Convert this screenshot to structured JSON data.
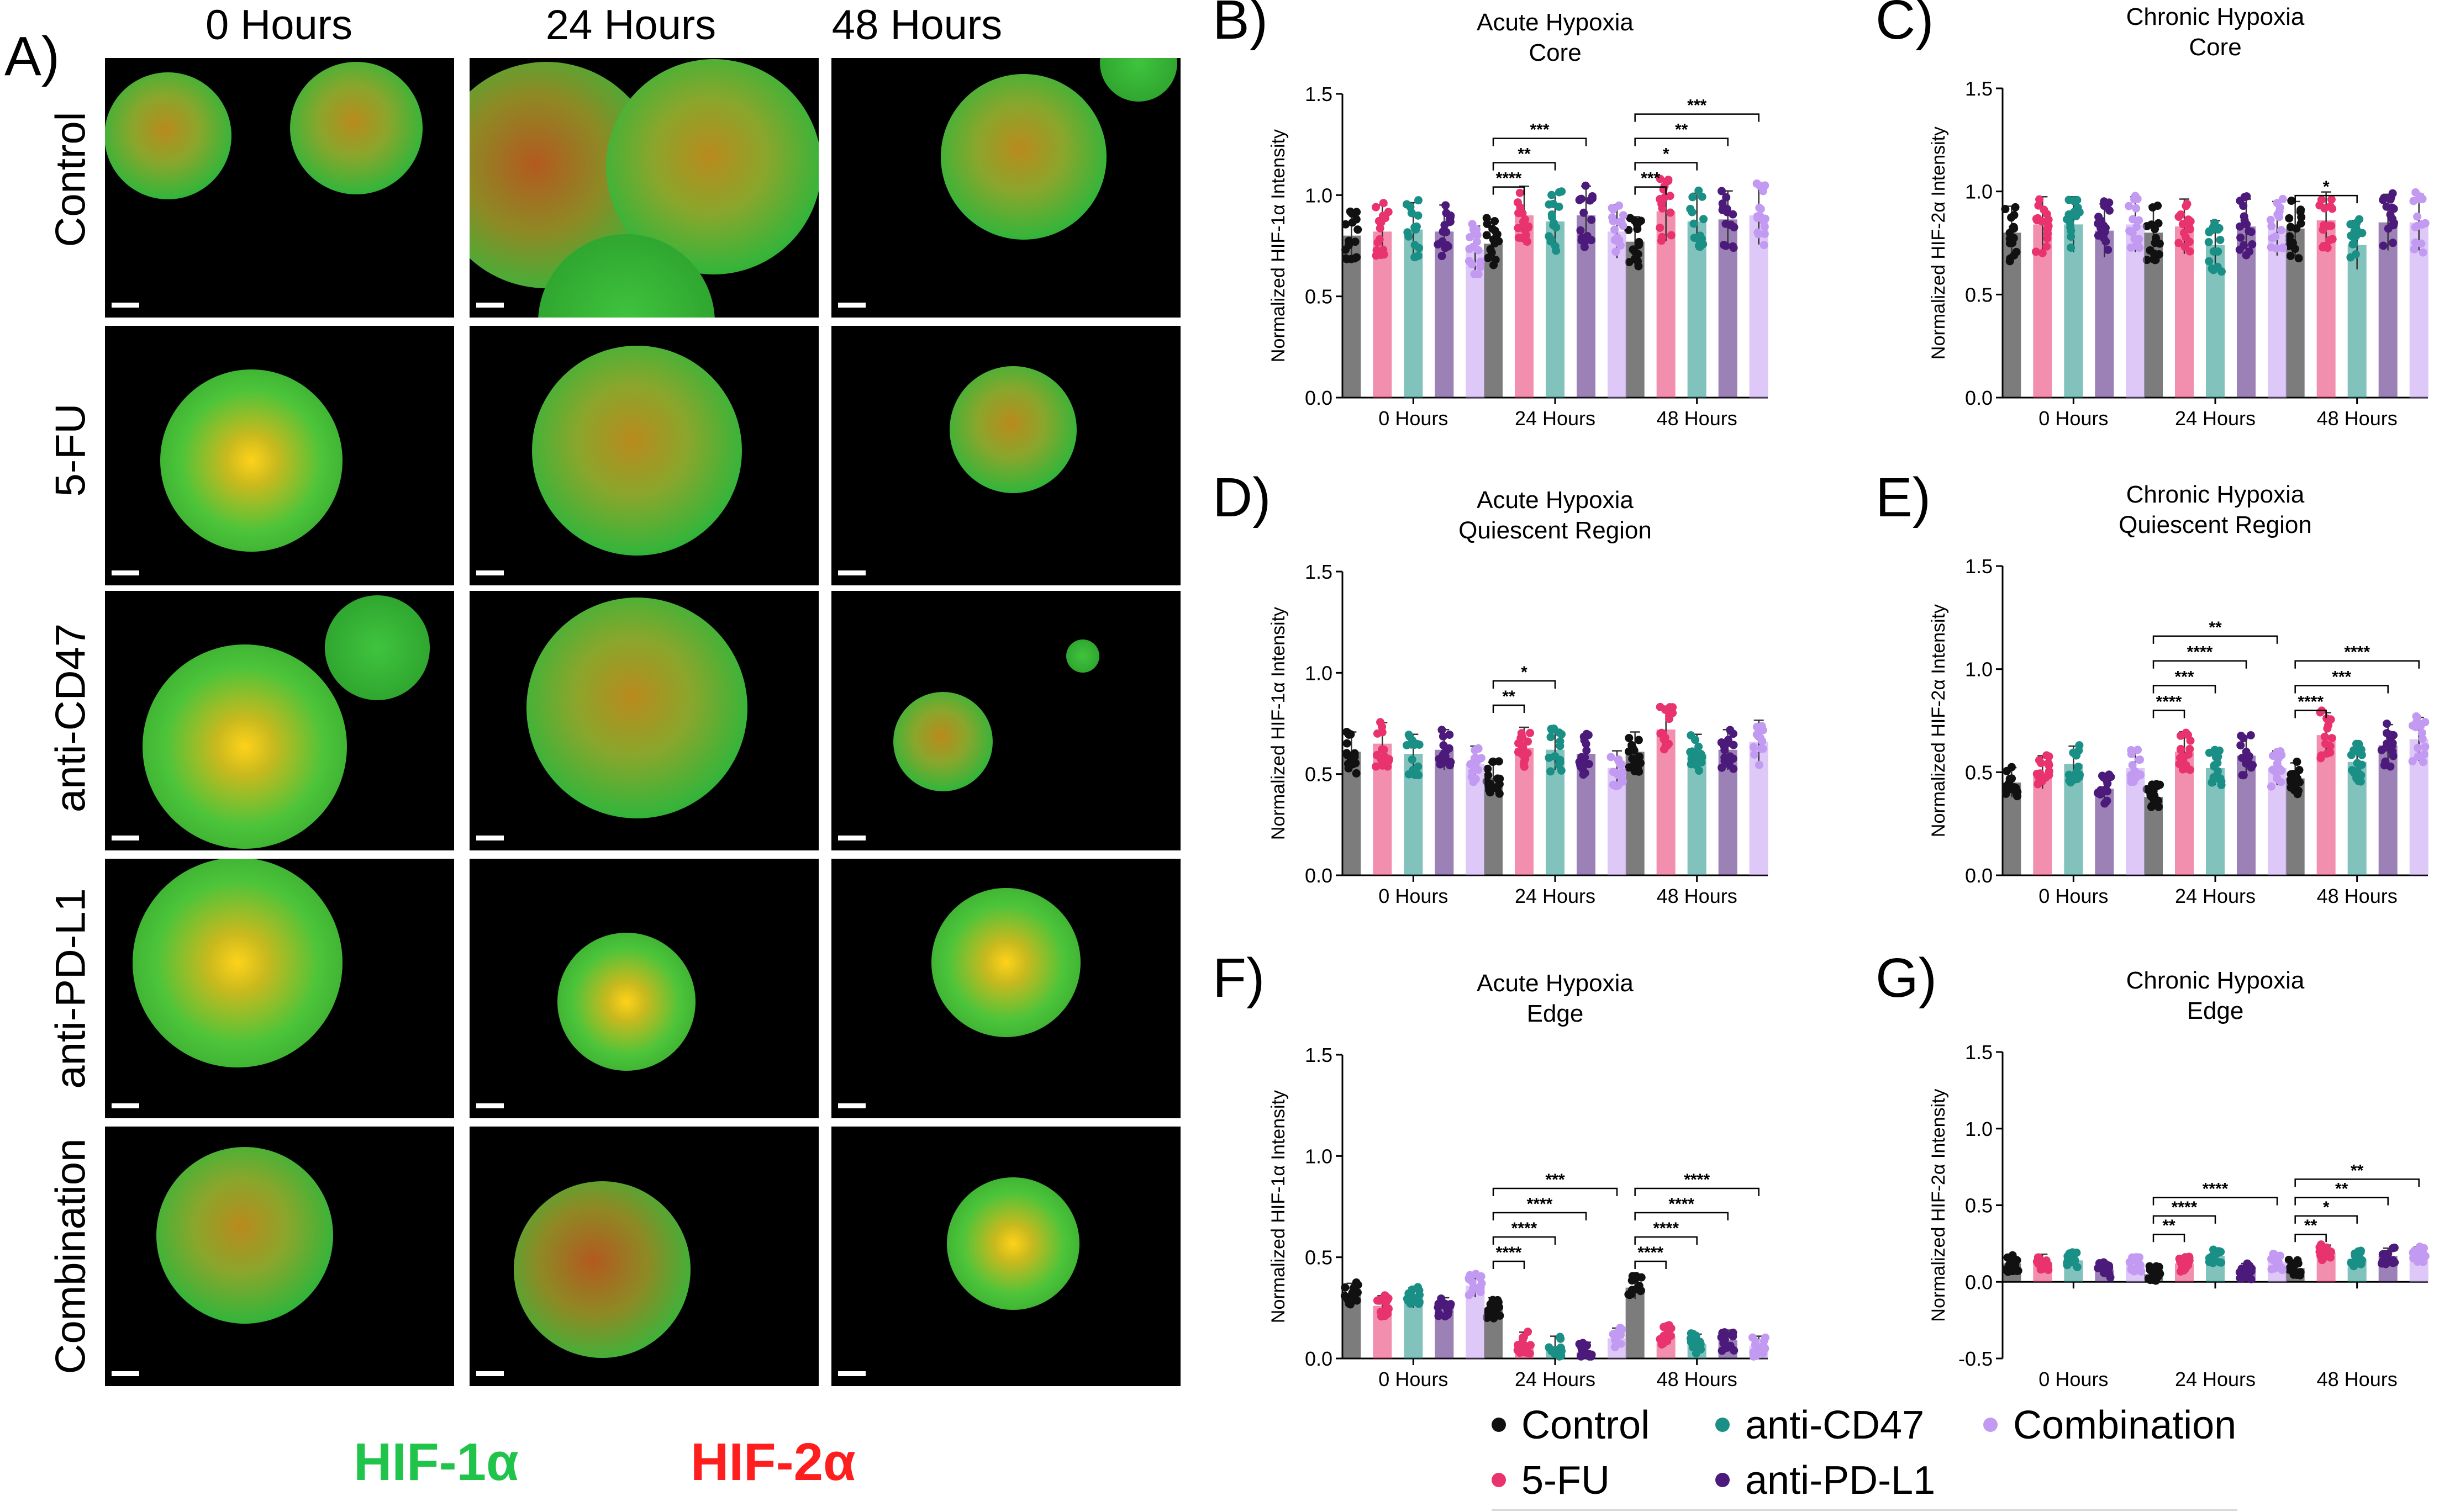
{
  "figure": {
    "panel_a_label": "A)",
    "time_headers": [
      "0 Hours",
      "24 Hours",
      "48 Hours"
    ],
    "row_labels": [
      "Control",
      "5-FU",
      "anti-CD47",
      "anti-PD-L1",
      "Combination"
    ],
    "channel_labels": [
      {
        "text": "HIF-1α",
        "color": "#21c44a"
      },
      {
        "text": "HIF-2α",
        "color": "#ff1e1e"
      }
    ]
  },
  "legend": [
    {
      "label": "Control",
      "color": "#111111"
    },
    {
      "label": "anti-CD47",
      "color": "#1a8f86"
    },
    {
      "label": "Combination",
      "color": "#c39af2"
    },
    {
      "label": "5-FU",
      "color": "#e8336e"
    },
    {
      "label": "anti-PD-L1",
      "color": "#4b1a7a"
    }
  ],
  "colors": {
    "Control": "#111111",
    "5-FU": "#e8336e",
    "anti-CD47": "#1a8f86",
    "anti-PD-L1": "#4b1a7a",
    "Combination": "#c39af2"
  },
  "chart_data": [
    {
      "panel": "B)",
      "type": "bar",
      "title": "Acute Hypoxia",
      "subtitle": "Core",
      "xlabel": "",
      "ylabel": "Normalized HIF-1α Intensity",
      "ylim": [
        0,
        1.5
      ],
      "yticks": [
        "0.0",
        "0.5",
        "1.0",
        "1.5"
      ],
      "categories": [
        "0 Hours",
        "24 Hours",
        "48 Hours"
      ],
      "series": [
        {
          "name": "Control",
          "values": [
            0.8,
            0.76,
            0.77
          ]
        },
        {
          "name": "5-FU",
          "values": [
            0.82,
            0.9,
            0.92
          ]
        },
        {
          "name": "anti-CD47",
          "values": [
            0.83,
            0.87,
            0.87
          ]
        },
        {
          "name": "anti-PD-L1",
          "values": [
            0.82,
            0.9,
            0.88
          ]
        },
        {
          "name": "Combination",
          "values": [
            0.73,
            0.82,
            0.9
          ]
        }
      ],
      "significance": [
        {
          "group": 1,
          "to": 1,
          "label": "****"
        },
        {
          "group": 1,
          "to": 2,
          "label": "**"
        },
        {
          "group": 1,
          "to": 3,
          "label": "***"
        },
        {
          "group": 2,
          "to": 1,
          "label": "***"
        },
        {
          "group": 2,
          "to": 2,
          "label": "*"
        },
        {
          "group": 2,
          "to": 3,
          "label": "**"
        },
        {
          "group": 2,
          "to": 4,
          "label": "***"
        }
      ]
    },
    {
      "panel": "C)",
      "type": "bar",
      "title": "Chronic Hypoxia",
      "subtitle": "Core",
      "xlabel": "",
      "ylabel": "Normalized HIF-2α Intensity",
      "ylim": [
        0,
        1.5
      ],
      "yticks": [
        "0.0",
        "0.5",
        "1.0",
        "1.5"
      ],
      "categories": [
        "0 Hours",
        "24 Hours",
        "48 Hours"
      ],
      "series": [
        {
          "name": "Control",
          "values": [
            0.8,
            0.8,
            0.82
          ]
        },
        {
          "name": "5-FU",
          "values": [
            0.84,
            0.83,
            0.86
          ]
        },
        {
          "name": "anti-CD47",
          "values": [
            0.84,
            0.74,
            0.74
          ]
        },
        {
          "name": "anti-PD-L1",
          "values": [
            0.81,
            0.83,
            0.85
          ]
        },
        {
          "name": "Combination",
          "values": [
            0.84,
            0.82,
            0.85
          ]
        }
      ],
      "significance": [
        {
          "group": 2,
          "to": 2,
          "label": "*"
        }
      ]
    },
    {
      "panel": "D)",
      "type": "bar",
      "title": "Acute Hypoxia",
      "subtitle": "Quiescent Region",
      "xlabel": "",
      "ylabel": "Normalized HIF-1α Intensity",
      "ylim": [
        0,
        1.5
      ],
      "yticks": [
        "0.0",
        "0.5",
        "1.0",
        "1.5"
      ],
      "categories": [
        "0 Hours",
        "24 Hours",
        "48 Hours"
      ],
      "series": [
        {
          "name": "Control",
          "values": [
            0.61,
            0.48,
            0.61
          ]
        },
        {
          "name": "5-FU",
          "values": [
            0.65,
            0.63,
            0.72
          ]
        },
        {
          "name": "anti-CD47",
          "values": [
            0.6,
            0.62,
            0.6
          ]
        },
        {
          "name": "anti-PD-L1",
          "values": [
            0.62,
            0.6,
            0.62
          ]
        },
        {
          "name": "Combination",
          "values": [
            0.55,
            0.53,
            0.66
          ]
        }
      ],
      "significance": [
        {
          "group": 1,
          "to": 1,
          "label": "**"
        },
        {
          "group": 1,
          "to": 2,
          "label": "*"
        }
      ]
    },
    {
      "panel": "E)",
      "type": "bar",
      "title": "Chronic Hypoxia",
      "subtitle": "Quiescent Region",
      "xlabel": "",
      "ylabel": "Normalized HIF-2α Intensity",
      "ylim": [
        0,
        1.5
      ],
      "yticks": [
        "0.0",
        "0.5",
        "1.0",
        "1.5"
      ],
      "categories": [
        "0 Hours",
        "24 Hours",
        "48 Hours"
      ],
      "series": [
        {
          "name": "Control",
          "values": [
            0.45,
            0.38,
            0.47
          ]
        },
        {
          "name": "5-FU",
          "values": [
            0.5,
            0.6,
            0.68
          ]
        },
        {
          "name": "anti-CD47",
          "values": [
            0.54,
            0.52,
            0.55
          ]
        },
        {
          "name": "anti-PD-L1",
          "values": [
            0.42,
            0.58,
            0.63
          ]
        },
        {
          "name": "Combination",
          "values": [
            0.52,
            0.52,
            0.66
          ]
        }
      ],
      "significance": [
        {
          "group": 1,
          "to": 1,
          "label": "****"
        },
        {
          "group": 1,
          "to": 2,
          "label": "***"
        },
        {
          "group": 1,
          "to": 3,
          "label": "****"
        },
        {
          "group": 1,
          "to": 4,
          "label": "**"
        },
        {
          "group": 2,
          "to": 1,
          "label": "****"
        },
        {
          "group": 2,
          "to": 3,
          "label": "***"
        },
        {
          "group": 2,
          "to": 4,
          "label": "****"
        }
      ]
    },
    {
      "panel": "F)",
      "type": "bar",
      "title": "Acute Hypoxia",
      "subtitle": "Edge",
      "xlabel": "",
      "ylabel": "Normalized HIF-1α Intensity",
      "ylim": [
        0,
        1.5
      ],
      "yticks": [
        "0.0",
        "0.5",
        "1.0",
        "1.5"
      ],
      "categories": [
        "0 Hours",
        "24 Hours",
        "48 Hours"
      ],
      "series": [
        {
          "name": "Control",
          "values": [
            0.32,
            0.25,
            0.35
          ]
        },
        {
          "name": "5-FU",
          "values": [
            0.26,
            0.08,
            0.11
          ]
        },
        {
          "name": "anti-CD47",
          "values": [
            0.3,
            0.06,
            0.07
          ]
        },
        {
          "name": "anti-PD-L1",
          "values": [
            0.25,
            0.03,
            0.09
          ]
        },
        {
          "name": "Combination",
          "values": [
            0.36,
            0.1,
            0.06
          ]
        }
      ],
      "significance": [
        {
          "group": 1,
          "to": 1,
          "label": "****"
        },
        {
          "group": 1,
          "to": 2,
          "label": "****"
        },
        {
          "group": 1,
          "to": 3,
          "label": "****"
        },
        {
          "group": 1,
          "to": 4,
          "label": "***"
        },
        {
          "group": 2,
          "to": 1,
          "label": "****"
        },
        {
          "group": 2,
          "to": 2,
          "label": "****"
        },
        {
          "group": 2,
          "to": 3,
          "label": "****"
        },
        {
          "group": 2,
          "to": 4,
          "label": "****"
        }
      ]
    },
    {
      "panel": "G)",
      "type": "bar",
      "title": "Chronic Hypoxia",
      "subtitle": "Edge",
      "xlabel": "",
      "ylabel": "Normalized HIF-2α Intensity",
      "ylim": [
        -0.5,
        1.5
      ],
      "yticks": [
        "-0.5",
        "0.0",
        "0.5",
        "1.0",
        "1.5"
      ],
      "categories": [
        "0 Hours",
        "24 Hours",
        "48 Hours"
      ],
      "series": [
        {
          "name": "Control",
          "values": [
            0.12,
            0.05,
            0.09
          ]
        },
        {
          "name": "5-FU",
          "values": [
            0.13,
            0.12,
            0.19
          ]
        },
        {
          "name": "anti-CD47",
          "values": [
            0.14,
            0.17,
            0.15
          ]
        },
        {
          "name": "anti-PD-L1",
          "values": [
            0.08,
            0.07,
            0.17
          ]
        },
        {
          "name": "Combination",
          "values": [
            0.12,
            0.13,
            0.18
          ]
        }
      ],
      "significance": [
        {
          "group": 1,
          "to": 1,
          "label": "**"
        },
        {
          "group": 1,
          "to": 2,
          "label": "****"
        },
        {
          "group": 1,
          "to": 4,
          "label": "****"
        },
        {
          "group": 2,
          "to": 1,
          "label": "**"
        },
        {
          "group": 2,
          "to": 2,
          "label": "*"
        },
        {
          "group": 2,
          "to": 3,
          "label": "**"
        },
        {
          "group": 2,
          "to": 4,
          "label": "**"
        }
      ]
    }
  ]
}
